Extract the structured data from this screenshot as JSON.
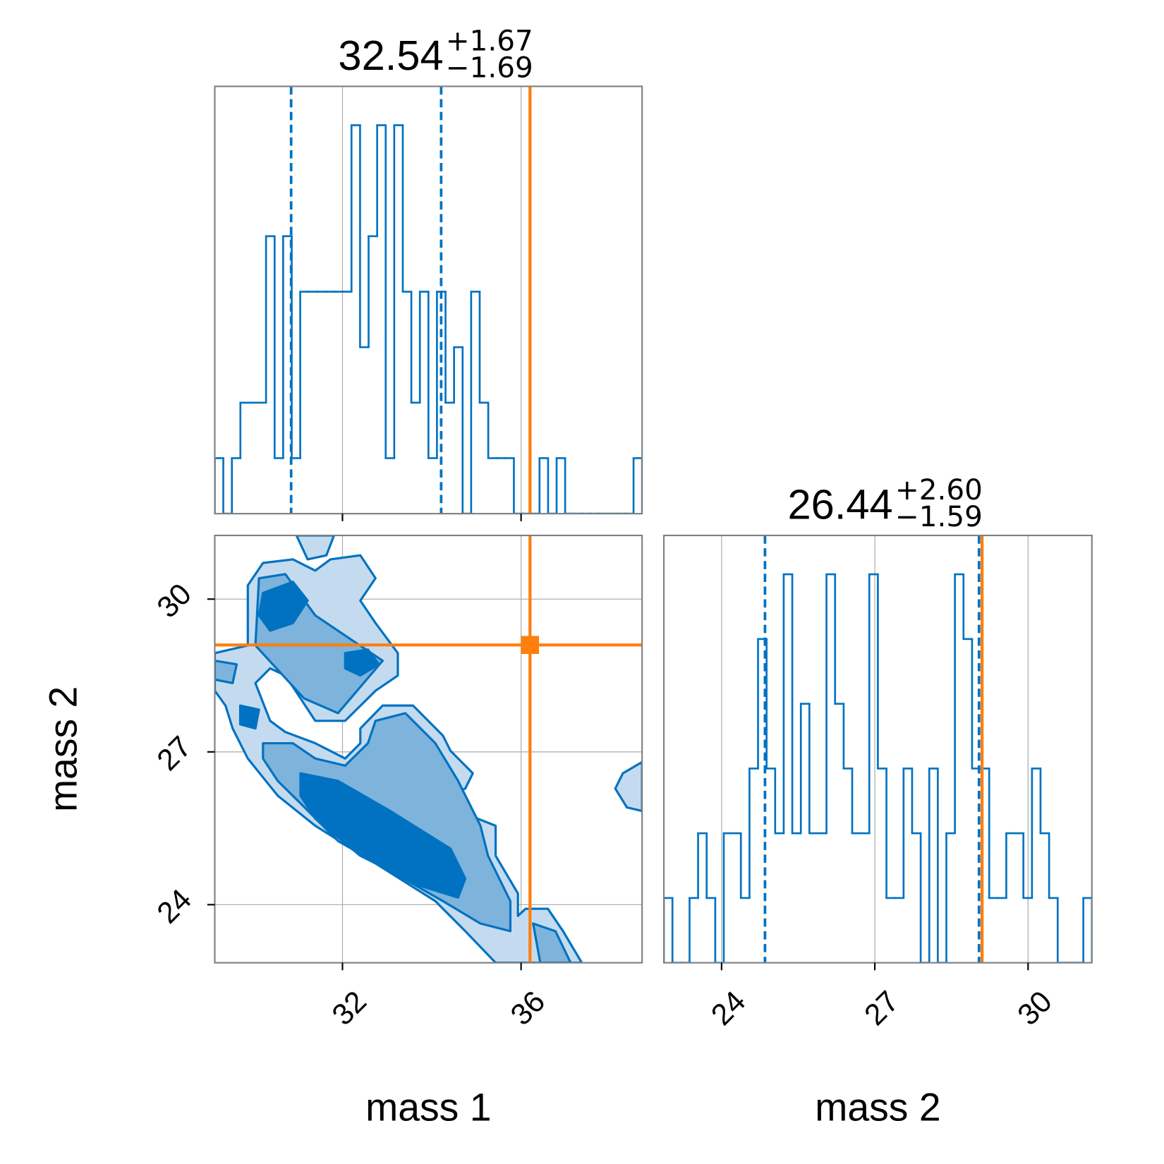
{
  "chart_data": [
    {
      "type": "histogram",
      "title": {
        "value": "32.54",
        "upper": "+1.67",
        "lower": "−1.69"
      },
      "bins": [
        29.14,
        29.331,
        29.523,
        29.714,
        29.906,
        30.097,
        30.288,
        30.48,
        30.671,
        30.863,
        31.054,
        31.245,
        31.437,
        31.628,
        31.82,
        32.011,
        32.202,
        32.394,
        32.585,
        32.777,
        32.968,
        33.159,
        33.351,
        33.542,
        33.734,
        33.925,
        34.116,
        34.308,
        34.499,
        34.691,
        34.882,
        35.073,
        35.265,
        35.456,
        35.648,
        35.839,
        36.03,
        36.222,
        36.413,
        36.605,
        36.796,
        36.987,
        37.179,
        37.37,
        37.562,
        37.753,
        37.944,
        38.136,
        38.327,
        38.519,
        38.71
      ],
      "values": [
        1,
        0,
        1,
        2,
        2,
        2,
        5,
        1,
        5,
        1,
        4,
        4,
        4,
        4,
        4,
        4,
        7,
        3,
        5,
        7,
        1,
        7,
        4,
        2,
        4,
        1,
        4,
        2,
        3,
        0,
        4,
        2,
        1,
        1,
        1,
        0,
        0,
        0,
        1,
        0,
        1,
        0,
        0,
        0,
        0,
        0,
        0,
        0,
        0,
        1
      ],
      "color": "#0072c1",
      "xlim": [
        29.14,
        38.71
      ],
      "ylim": [
        0,
        7.7
      ],
      "xticks": [
        32,
        36
      ],
      "quantiles": [
        30.85,
        34.21
      ],
      "truth": 36.2,
      "truth_color": "#ff7f0e",
      "grid": true
    },
    {
      "type": "contour",
      "xlabel": "mass 1",
      "ylabel": "mass 2",
      "xlim": [
        29.14,
        38.71
      ],
      "ylim": [
        22.86,
        31.25
      ],
      "xticks": [
        32,
        36
      ],
      "yticks": [
        24,
        27,
        30
      ],
      "truth": [
        36.2,
        29.1
      ],
      "truth_color": "#ff7f0e",
      "line_color": "#0072c1",
      "grid": true,
      "levels": [
        {
          "color": "#c4dbef",
          "polygons": [
            {
              "x": [
                29.14,
                29.88,
                29.88,
                30.22,
                30.89,
                31.39,
                31.73,
                32.4,
                32.74,
                32.4,
                32.74,
                33.24,
                33.24,
                32.74,
                32.06,
                31.39,
                31.06,
                30.72,
                30.38,
                30.05,
                30.38,
                30.72,
                31.39,
                32.06,
                32.4,
                32.4,
                32.9,
                33.58,
                34.25,
                34.42,
                34.92,
                34.75,
                34.42,
                34.59,
                35.43,
                35.43,
                35.93,
                35.93,
                36.1,
                36.6,
                36.94,
                37.36,
                35.43,
                34.75,
                34.08,
                32.74,
                31.39,
                30.55,
                29.88,
                29.54,
                29.38,
                29.14
              ],
              "y": [
                28.94,
                29.09,
                30.27,
                30.71,
                30.78,
                30.56,
                30.78,
                30.86,
                30.41,
                29.97,
                29.53,
                28.94,
                28.5,
                28.2,
                27.61,
                27.61,
                28.05,
                28.5,
                28.64,
                28.35,
                27.61,
                27.39,
                27.17,
                26.87,
                27.17,
                27.46,
                27.91,
                27.91,
                27.32,
                27.02,
                26.58,
                26.28,
                26.14,
                25.84,
                25.55,
                24.96,
                24.22,
                23.78,
                23.92,
                23.92,
                23.48,
                22.86,
                22.86,
                23.48,
                24.07,
                24.81,
                25.55,
                26.14,
                26.87,
                27.46,
                27.91,
                28.2
              ]
            },
            {
              "x": [
                30.97,
                31.81,
                31.64,
                31.22
              ],
              "y": [
                31.25,
                31.25,
                30.86,
                30.78
              ]
            },
            {
              "x": [
                38.71,
                38.28,
                38.11,
                38.37,
                38.71
              ],
              "y": [
                26.8,
                26.58,
                26.28,
                25.91,
                25.84
              ]
            }
          ]
        },
        {
          "color": "#7eb3dc",
          "polygons": [
            {
              "x": [
                30.13,
                30.72,
                31.39,
                32.9,
                31.9,
                31.14,
                30.05
              ],
              "y": [
                30.41,
                30.49,
                29.68,
                28.79,
                27.76,
                28.05,
                29.09
              ]
            },
            {
              "x": [
                30.22,
                30.89,
                31.39,
                32.06,
                32.57,
                32.74,
                33.41,
                34.08,
                34.59,
                35.09,
                35.26,
                35.76,
                35.76,
                35.09,
                34.25,
                33.07,
                31.9,
                31.06,
                30.55,
                30.22
              ],
              "y": [
                27.17,
                27.17,
                26.87,
                26.73,
                27.17,
                27.61,
                27.76,
                27.17,
                26.43,
                25.55,
                24.96,
                24.07,
                23.48,
                23.63,
                24.07,
                24.66,
                25.25,
                25.99,
                26.43,
                26.87
              ]
            },
            {
              "x": [
                36.27,
                36.77,
                37.11,
                36.43
              ],
              "y": [
                23.63,
                23.48,
                22.86,
                22.86
              ]
            },
            {
              "x": [
                29.14,
                29.63,
                29.54,
                29.14
              ],
              "y": [
                28.79,
                28.72,
                28.35,
                28.42
              ]
            }
          ]
        },
        {
          "color": "#0072c1",
          "polygons": [
            {
              "x": [
                30.22,
                30.89,
                31.22,
                30.89,
                30.38,
                30.13
              ],
              "y": [
                30.12,
                30.34,
                29.97,
                29.53,
                29.38,
                29.68
              ]
            },
            {
              "x": [
                32.06,
                32.57,
                32.82,
                32.4,
                32.06
              ],
              "y": [
                28.94,
                29.01,
                28.72,
                28.5,
                28.64
              ]
            },
            {
              "x": [
                31.06,
                31.9,
                33.07,
                34.42,
                34.75,
                34.59,
                33.74,
                32.4,
                31.39,
                31.06
              ],
              "y": [
                26.58,
                26.43,
                25.84,
                25.1,
                24.51,
                24.14,
                24.37,
                24.96,
                25.69,
                26.14
              ]
            },
            {
              "x": [
                29.71,
                30.13,
                30.05,
                29.71
              ],
              "y": [
                27.91,
                27.83,
                27.46,
                27.54
              ]
            }
          ]
        }
      ]
    },
    {
      "type": "histogram",
      "xlabel": "mass 2",
      "title": {
        "value": "26.44",
        "upper": "+2.60",
        "lower": "−1.59"
      },
      "bins": [
        22.87,
        23.038,
        23.205,
        23.373,
        23.54,
        23.708,
        23.876,
        24.043,
        24.211,
        24.378,
        24.546,
        24.714,
        24.881,
        25.049,
        25.216,
        25.384,
        25.552,
        25.719,
        25.887,
        26.054,
        26.222,
        26.39,
        26.557,
        26.725,
        26.892,
        27.06,
        27.228,
        27.395,
        27.563,
        27.73,
        27.898,
        28.066,
        28.233,
        28.401,
        28.568,
        28.736,
        28.904,
        29.071,
        29.239,
        29.406,
        29.574,
        29.742,
        29.909,
        30.077,
        30.244,
        30.412,
        30.58,
        30.747,
        30.915,
        31.082,
        31.25
      ],
      "values": [
        1,
        0,
        0,
        1,
        2,
        1,
        0,
        2,
        2,
        1,
        3,
        5,
        3,
        2,
        6,
        2,
        4,
        2,
        2,
        6,
        4,
        3,
        2,
        2,
        6,
        3,
        1,
        1,
        3,
        2,
        0,
        3,
        0,
        2,
        6,
        5,
        3,
        3,
        1,
        1,
        2,
        2,
        1,
        3,
        2,
        1,
        0,
        0,
        0,
        1
      ],
      "color": "#0072c1",
      "xlim": [
        22.87,
        31.25
      ],
      "ylim": [
        0,
        6.6
      ],
      "xticks": [
        24,
        27,
        30
      ],
      "quantiles": [
        24.85,
        29.04
      ],
      "truth": 29.1,
      "truth_color": "#ff7f0e",
      "grid": true
    }
  ]
}
